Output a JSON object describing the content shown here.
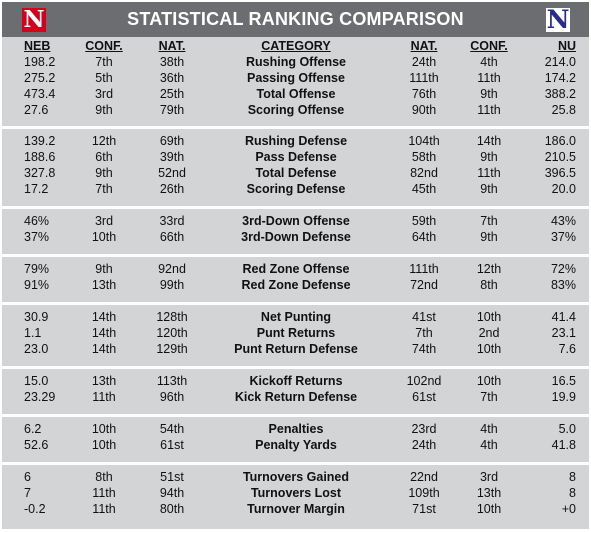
{
  "title": "STATISTICAL RANKING COMPARISON",
  "logos": {
    "left": "N",
    "right": "N"
  },
  "colors": {
    "header_bg": "#6b6d70",
    "panel_bg": "#d3d4d6",
    "nebraska_red": "#d6001c",
    "northwestern_purple": "#2a2a8f"
  },
  "columns": {
    "neb": "NEB",
    "conf": "CONF.",
    "nat": "NAT.",
    "category": "CATEGORY",
    "nu_nat": "NAT.",
    "nu_conf": "CONF.",
    "nu": "NU"
  },
  "sections": [
    {
      "rows": [
        {
          "neb": "198.2",
          "conf": "7th",
          "nat": "38th",
          "category": "Rushing Offense",
          "nu_nat": "24th",
          "nu_conf": "4th",
          "nu": "214.0"
        },
        {
          "neb": "275.2",
          "conf": "5th",
          "nat": "36th",
          "category": "Passing Offense",
          "nu_nat": "111th",
          "nu_conf": "11th",
          "nu": "174.2"
        },
        {
          "neb": "473.4",
          "conf": "3rd",
          "nat": "25th",
          "category": "Total Offense",
          "nu_nat": "76th",
          "nu_conf": "9th",
          "nu": "388.2"
        },
        {
          "neb": "27.6",
          "conf": "9th",
          "nat": "79th",
          "category": "Scoring Offense",
          "nu_nat": "90th",
          "nu_conf": "11th",
          "nu": "25.8"
        }
      ]
    },
    {
      "rows": [
        {
          "neb": "139.2",
          "conf": "12th",
          "nat": "69th",
          "category": "Rushing Defense",
          "nu_nat": "104th",
          "nu_conf": "14th",
          "nu": "186.0"
        },
        {
          "neb": "188.6",
          "conf": "6th",
          "nat": "39th",
          "category": "Pass Defense",
          "nu_nat": "58th",
          "nu_conf": "9th",
          "nu": "210.5"
        },
        {
          "neb": "327.8",
          "conf": "9th",
          "nat": "52nd",
          "category": "Total Defense",
          "nu_nat": "82nd",
          "nu_conf": "11th",
          "nu": "396.5"
        },
        {
          "neb": "17.2",
          "conf": "7th",
          "nat": "26th",
          "category": "Scoring Defense",
          "nu_nat": "45th",
          "nu_conf": "9th",
          "nu": "20.0"
        }
      ]
    },
    {
      "rows": [
        {
          "neb": "46%",
          "conf": "3rd",
          "nat": "33rd",
          "category": "3rd-Down Offense",
          "nu_nat": "59th",
          "nu_conf": "7th",
          "nu": "43%"
        },
        {
          "neb": "37%",
          "conf": "10th",
          "nat": "66th",
          "category": "3rd-Down Defense",
          "nu_nat": "64th",
          "nu_conf": "9th",
          "nu": "37%"
        }
      ]
    },
    {
      "rows": [
        {
          "neb": "79%",
          "conf": "9th",
          "nat": "92nd",
          "category": "Red Zone Offense",
          "nu_nat": "111th",
          "nu_conf": "12th",
          "nu": "72%"
        },
        {
          "neb": "91%",
          "conf": "13th",
          "nat": "99th",
          "category": "Red Zone Defense",
          "nu_nat": "72nd",
          "nu_conf": "8th",
          "nu": "83%"
        }
      ]
    },
    {
      "rows": [
        {
          "neb": "30.9",
          "conf": "14th",
          "nat": "128th",
          "category": "Net Punting",
          "nu_nat": "41st",
          "nu_conf": "10th",
          "nu": "41.4"
        },
        {
          "neb": "1.1",
          "conf": "14th",
          "nat": "120th",
          "category": "Punt Returns",
          "nu_nat": "7th",
          "nu_conf": "2nd",
          "nu": "23.1"
        },
        {
          "neb": "23.0",
          "conf": "14th",
          "nat": "129th",
          "category": "Punt Return Defense",
          "nu_nat": "74th",
          "nu_conf": "10th",
          "nu": "7.6"
        }
      ]
    },
    {
      "rows": [
        {
          "neb": "15.0",
          "conf": "13th",
          "nat": "113th",
          "category": "Kickoff Returns",
          "nu_nat": "102nd",
          "nu_conf": "10th",
          "nu": "16.5"
        },
        {
          "neb": "23.29",
          "conf": "11th",
          "nat": "96th",
          "category": "Kick Return Defense",
          "nu_nat": "61st",
          "nu_conf": "7th",
          "nu": "19.9"
        }
      ]
    },
    {
      "rows": [
        {
          "neb": "6.2",
          "conf": "10th",
          "nat": "54th",
          "category": "Penalties",
          "nu_nat": "23rd",
          "nu_conf": "4th",
          "nu": "5.0"
        },
        {
          "neb": "52.6",
          "conf": "10th",
          "nat": "61st",
          "category": "Penalty Yards",
          "nu_nat": "24th",
          "nu_conf": "4th",
          "nu": "41.8"
        }
      ]
    },
    {
      "rows": [
        {
          "neb": "6",
          "conf": "8th",
          "nat": "51st",
          "category": "Turnovers Gained",
          "nu_nat": "22nd",
          "nu_conf": "3rd",
          "nu": "8"
        },
        {
          "neb": "7",
          "conf": "11th",
          "nat": "94th",
          "category": "Turnovers Lost",
          "nu_nat": "109th",
          "nu_conf": "13th",
          "nu": "8"
        },
        {
          "neb": "-0.2",
          "conf": "11th",
          "nat": "80th",
          "category": "Turnover Margin",
          "nu_nat": "71st",
          "nu_conf": "10th",
          "nu": "+0"
        }
      ]
    }
  ]
}
